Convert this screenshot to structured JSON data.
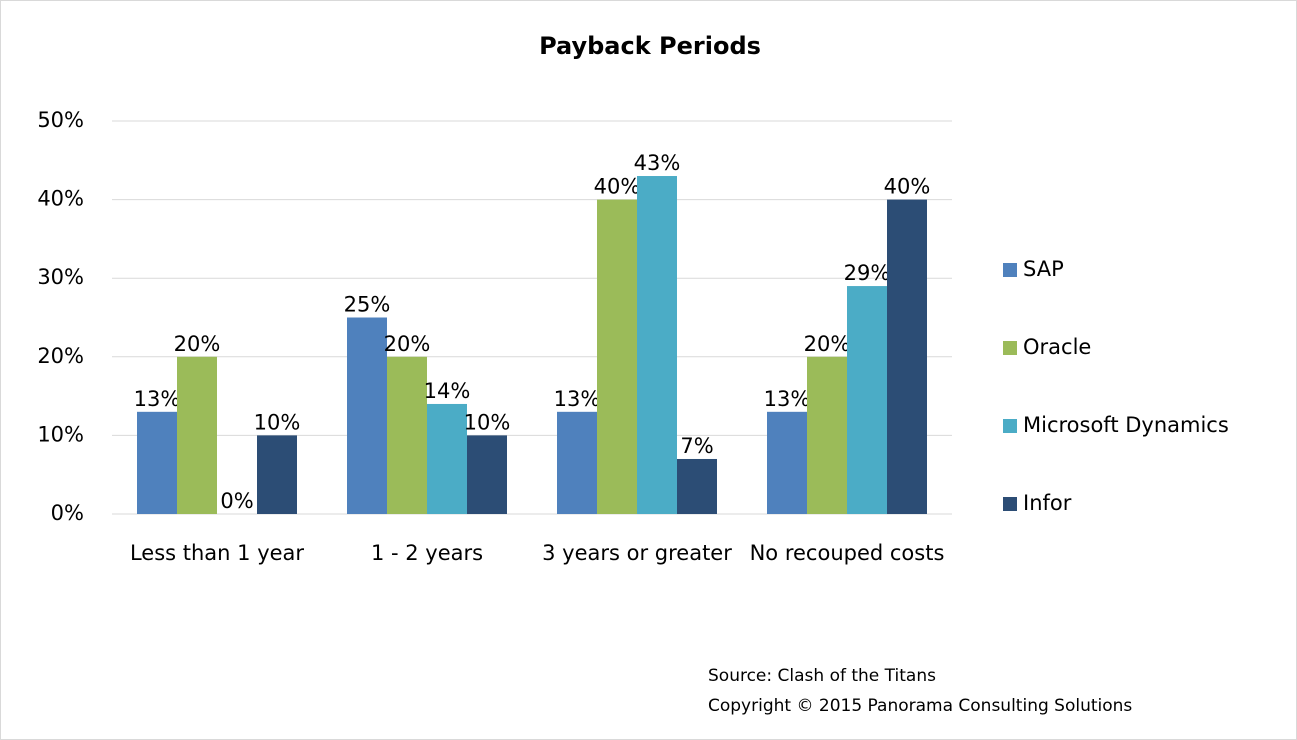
{
  "chart_data": {
    "type": "bar",
    "title": "Payback Periods",
    "categories": [
      "Less than 1 year",
      "1 - 2 years",
      "3 years or greater",
      "No recouped costs"
    ],
    "series": [
      {
        "name": "SAP",
        "color": "#4f81bd",
        "values": [
          13,
          25,
          13,
          13
        ],
        "value_labels": [
          "13%",
          "25%",
          "13%",
          "13%"
        ]
      },
      {
        "name": "Oracle",
        "color": "#9bbb59",
        "values": [
          20,
          20,
          40,
          20
        ],
        "value_labels": [
          "20%",
          "20%",
          "40%",
          "20%"
        ]
      },
      {
        "name": "Microsoft Dynamics",
        "color": "#4bacc6",
        "values": [
          0,
          14,
          43,
          29
        ],
        "value_labels": [
          "0%",
          "14%",
          "43%",
          "29%"
        ]
      },
      {
        "name": "Infor",
        "color": "#2c4d75",
        "values": [
          10,
          10,
          7,
          40
        ],
        "value_labels": [
          "10%",
          "10%",
          "7%",
          "40%"
        ]
      }
    ],
    "ylim": [
      0,
      50
    ],
    "yticks": [
      {
        "value": 0,
        "label": "0%"
      },
      {
        "value": 10,
        "label": "10%"
      },
      {
        "value": 20,
        "label": "20%"
      },
      {
        "value": 30,
        "label": "30%"
      },
      {
        "value": 40,
        "label": "40%"
      },
      {
        "value": 50,
        "label": "50%"
      }
    ],
    "grid": true,
    "legend": "right",
    "annotations": [
      "Source: Clash of the Titans",
      "Copyright © 2015 Panorama Consulting Solutions"
    ]
  }
}
